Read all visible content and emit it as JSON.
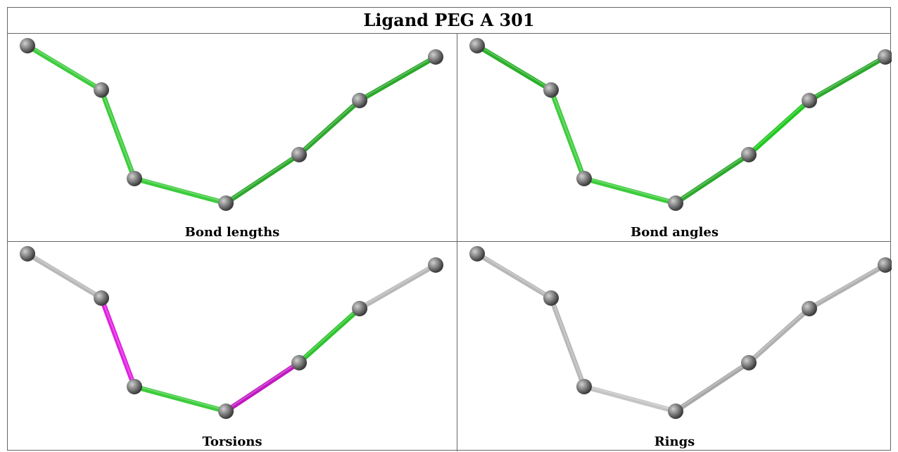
{
  "title": "Ligand PEG A 301",
  "atom_color": "#7d7d7d",
  "panels": [
    {
      "caption": "Bond lengths",
      "bond_colors": [
        "#3ccc3c",
        "#3ccc3c",
        "#3ccc3c",
        "#2aa82a",
        "#2aa82a",
        "#2aa82a"
      ]
    },
    {
      "caption": "Bond angles",
      "bond_colors": [
        "#2ab02a",
        "#3ccc3c",
        "#3ccc3c",
        "#2aa82a",
        "#1ec81e",
        "#2aa82a"
      ]
    },
    {
      "caption": "Torsions",
      "bond_colors": [
        "#b8b8b8",
        "#e020e0",
        "#3ccc3c",
        "#c018c0",
        "#2cc42c",
        "#b8b8b8"
      ]
    },
    {
      "caption": "Rings",
      "bond_colors": [
        "#b8b8b8",
        "#b8b8b8",
        "#c4c4c4",
        "#a8a8a8",
        "#b0b0b0",
        "#b0b0b0"
      ]
    }
  ]
}
